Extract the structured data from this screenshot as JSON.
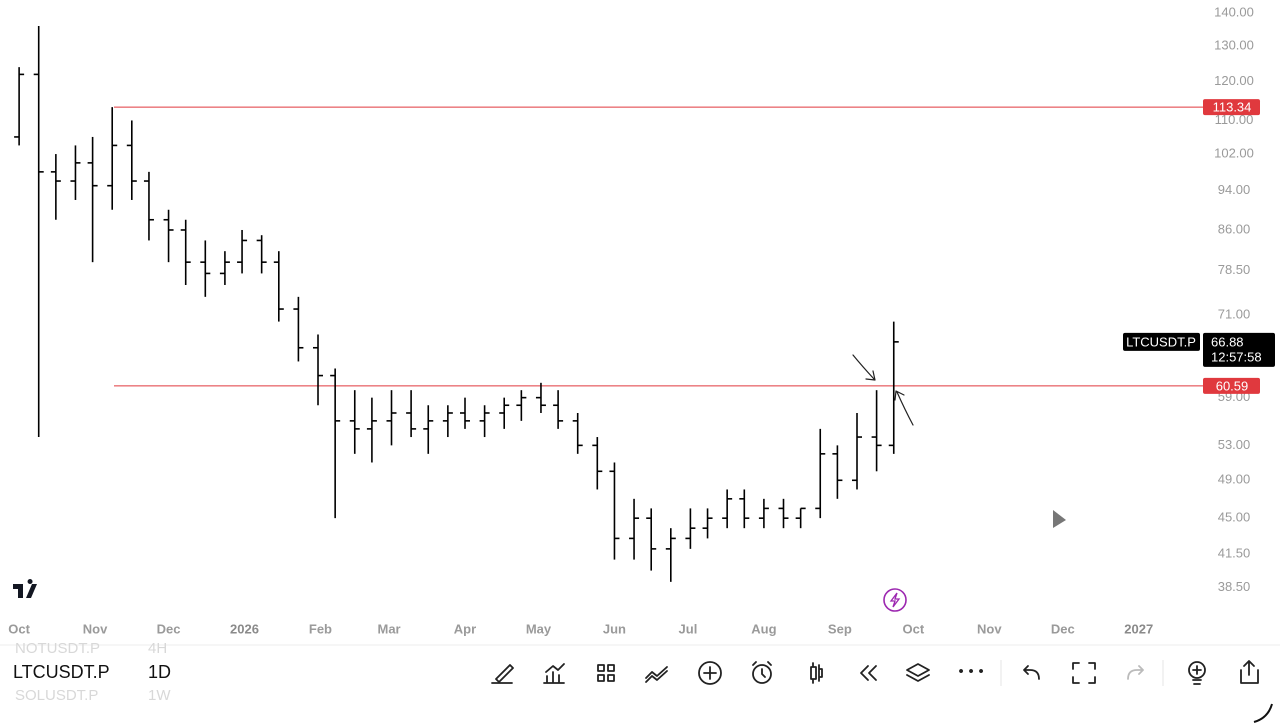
{
  "chart_data": {
    "type": "ohlc",
    "symbol": "LTCUSDT.P",
    "countdown": "12:57:58",
    "color": "#000000",
    "log_scale": true,
    "ylim": [
      36.2,
      144.2
    ],
    "yticks": [
      {
        "value": 140,
        "label": "140.00"
      },
      {
        "value": 130,
        "label": "130.00"
      },
      {
        "value": 120,
        "label": "120.00"
      },
      {
        "value": 110,
        "label": "110.00"
      },
      {
        "value": 102,
        "label": "102.00"
      },
      {
        "value": 94,
        "label": "94.00"
      },
      {
        "value": 86,
        "label": "86.00"
      },
      {
        "value": 78.5,
        "label": "78.50"
      },
      {
        "value": 71,
        "label": "71.00"
      },
      {
        "value": 59,
        "label": "59.00"
      },
      {
        "value": 53,
        "label": "53.00"
      },
      {
        "value": 49,
        "label": "49.00"
      },
      {
        "value": 45,
        "label": "45.00"
      },
      {
        "value": 41.5,
        "label": "41.50"
      },
      {
        "value": 38.5,
        "label": "38.50"
      }
    ],
    "xlim": [
      -7.8,
      482
    ],
    "xticks": [
      {
        "value": 0,
        "label": "Oct"
      },
      {
        "value": 31,
        "label": "Nov"
      },
      {
        "value": 61,
        "label": "Dec"
      },
      {
        "value": 92,
        "label": "2026"
      },
      {
        "value": 123,
        "label": "Feb"
      },
      {
        "value": 151,
        "label": "Mar"
      },
      {
        "value": 182,
        "label": "Apr"
      },
      {
        "value": 212,
        "label": "May"
      },
      {
        "value": 243,
        "label": "Jun"
      },
      {
        "value": 273,
        "label": "Jul"
      },
      {
        "value": 304,
        "label": "Aug"
      },
      {
        "value": 335,
        "label": "Sep"
      },
      {
        "value": 365,
        "label": "Oct"
      },
      {
        "value": 396,
        "label": "Nov"
      },
      {
        "value": 426,
        "label": "Dec"
      },
      {
        "value": 457,
        "label": "2027"
      }
    ],
    "x": [
      0,
      8,
      15,
      23,
      30,
      38,
      46,
      53,
      61,
      68,
      76,
      84,
      91,
      99,
      106,
      114,
      122,
      129,
      137,
      144,
      152,
      160,
      167,
      175,
      182,
      190,
      198,
      205,
      213,
      220,
      228,
      236,
      243,
      251,
      258,
      266,
      274,
      281,
      289,
      296,
      304,
      312,
      319,
      327,
      334,
      342,
      350,
      357
    ],
    "open": [
      106,
      122,
      98,
      96,
      100,
      95,
      104,
      96,
      88,
      86,
      80,
      78,
      80,
      84,
      80,
      72,
      66,
      62,
      56,
      55,
      56,
      57,
      55,
      56,
      57,
      56,
      57,
      58,
      59,
      58,
      56,
      53,
      50,
      43,
      45,
      42,
      43,
      44,
      45,
      47,
      45,
      46,
      45,
      46,
      52,
      49,
      54,
      53
    ],
    "high": [
      124,
      136,
      102,
      104,
      106,
      113.34,
      110,
      98,
      90,
      88,
      84,
      82,
      86,
      85,
      82,
      74,
      68,
      63,
      60,
      59,
      60,
      60,
      58,
      58,
      59,
      58,
      59,
      60,
      61,
      60,
      57,
      54,
      51,
      47,
      46,
      44,
      46,
      46,
      48,
      48,
      47,
      47,
      46,
      55,
      53,
      57,
      60,
      70
    ],
    "low": [
      104,
      54,
      88,
      92,
      80,
      90,
      92,
      84,
      80,
      76,
      74,
      76,
      78,
      78,
      70,
      64,
      58,
      45,
      52,
      51,
      53,
      54,
      52,
      54,
      55,
      54,
      55,
      56,
      57,
      55,
      52,
      48,
      41,
      41,
      40,
      39,
      42,
      43,
      44,
      44,
      44,
      44,
      44,
      45,
      47,
      48,
      50,
      52
    ],
    "close": [
      122,
      98,
      96,
      100,
      95,
      104,
      96,
      88,
      86,
      80,
      78,
      80,
      84,
      80,
      72,
      66,
      62,
      56,
      55,
      56,
      57,
      55,
      56,
      57,
      56,
      57,
      58,
      59,
      58,
      56,
      53,
      50,
      43,
      45,
      42,
      43,
      44,
      45,
      47,
      45,
      46,
      45,
      46,
      52,
      49,
      54,
      53,
      66.88
    ],
    "hlines": [
      {
        "value": 113.34,
        "color": "#e0393e"
      },
      {
        "value": 60.59,
        "color": "#e0393e"
      }
    ]
  },
  "toolbar": {
    "interval": "1D",
    "watchlist": [
      {
        "symbol": "NOTUSDT.P",
        "interval": "4H"
      },
      {
        "symbol": "SOLUSDT.P",
        "interval": "1W"
      }
    ]
  }
}
